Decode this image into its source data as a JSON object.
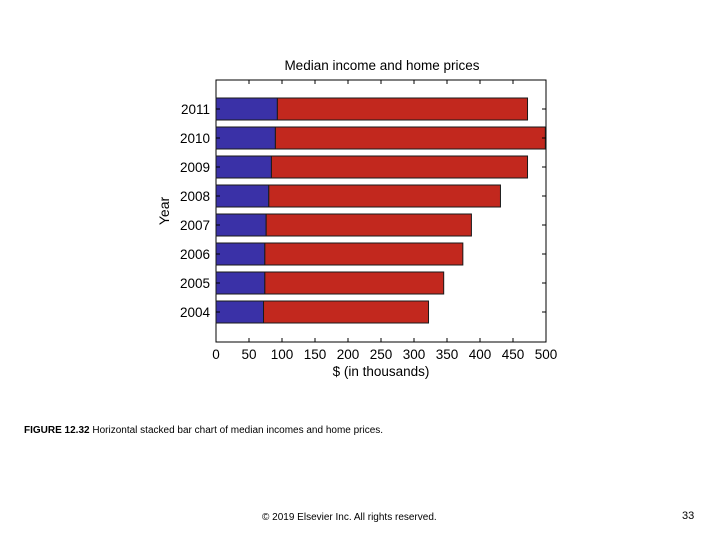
{
  "chart_data": {
    "type": "bar",
    "orientation": "horizontal",
    "stacked": true,
    "title": "Median income and home prices",
    "xlabel": "$ (in thousands)",
    "ylabel": "Year",
    "xlim": [
      0,
      500
    ],
    "xticks": [
      0,
      50,
      100,
      150,
      200,
      250,
      300,
      350,
      400,
      450,
      500
    ],
    "categories": [
      "2011",
      "2010",
      "2009",
      "2008",
      "2007",
      "2006",
      "2005",
      "2004"
    ],
    "series": [
      {
        "values": [
          93,
          90,
          84,
          80,
          76,
          74,
          74,
          72
        ],
        "color": "#3a31a7"
      },
      {
        "values": [
          379,
          409,
          388,
          351,
          311,
          300,
          271,
          250
        ],
        "color": "#c2281e"
      }
    ],
    "grid": false
  },
  "caption": {
    "label": "FIGURE 12.32",
    "text": " Horizontal stacked bar chart of median incomes and home prices."
  },
  "footer": {
    "copyright": "© 2019 Elsevier Inc. All rights reserved.",
    "page_number": "33"
  }
}
